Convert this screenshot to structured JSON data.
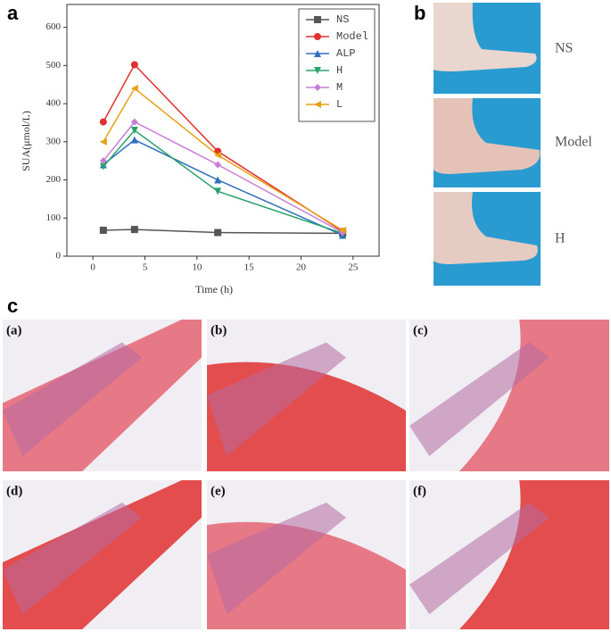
{
  "panel_labels": [
    "a",
    "b",
    "c"
  ],
  "chart_data": {
    "type": "line",
    "ylabel": "SUA(μmol/L)",
    "xlabel": "Time (h)",
    "x": [
      1,
      4,
      12,
      24
    ],
    "series": [
      {
        "name": "NS",
        "color": "#555555",
        "marker": "square",
        "values": [
          68,
          70,
          62,
          60
        ]
      },
      {
        "name": "Model",
        "color": "#e03030",
        "marker": "circle",
        "values": [
          352,
          502,
          275,
          65
        ]
      },
      {
        "name": "ALP",
        "color": "#2e6fbf",
        "marker": "triangle-up",
        "values": [
          240,
          305,
          200,
          55
        ]
      },
      {
        "name": "H",
        "color": "#2aa36a",
        "marker": "triangle-down",
        "values": [
          235,
          330,
          170,
          60
        ]
      },
      {
        "name": "M",
        "color": "#c77fd6",
        "marker": "diamond",
        "values": [
          250,
          352,
          240,
          62
        ]
      },
      {
        "name": "L",
        "color": "#e6a117",
        "marker": "triangle-left",
        "values": [
          300,
          440,
          265,
          68
        ]
      }
    ],
    "xlim": [
      -2.5,
      27.5
    ],
    "xticks": [
      0,
      5,
      10,
      15,
      20,
      25
    ],
    "ylim": [
      0,
      660
    ],
    "yticks": [
      0,
      100,
      200,
      300,
      400,
      500,
      600
    ],
    "legend": "top-right"
  },
  "photo_labels": [
    "NS",
    "Model",
    "H"
  ],
  "histology_labels": [
    "(a)",
    "(b)",
    "(c)",
    "(d)",
    "(e)",
    "(f)"
  ]
}
